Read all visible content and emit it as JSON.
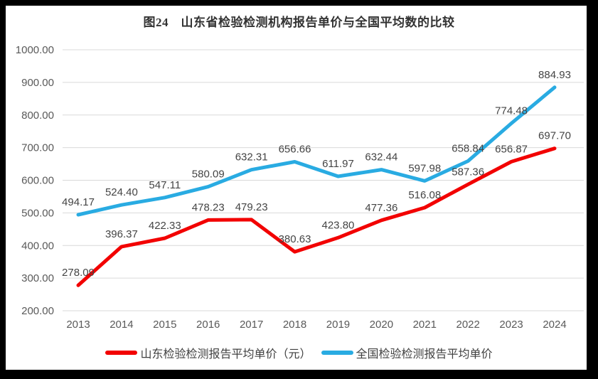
{
  "title": "图24　山东省检验检测机构报告单价与全国平均数的比较",
  "chart_data": {
    "type": "line",
    "categories": [
      "2013",
      "2014",
      "2015",
      "2016",
      "2017",
      "2018",
      "2019",
      "2020",
      "2021",
      "2022",
      "2023",
      "2024"
    ],
    "series": [
      {
        "id": "shandong",
        "name": "山东检验检测报告平均单价（元）",
        "color": "#f20000",
        "values": [
          278.09,
          396.37,
          422.33,
          478.23,
          479.23,
          380.63,
          423.8,
          477.36,
          516.08,
          587.36,
          656.87,
          697.7
        ]
      },
      {
        "id": "national",
        "name": "全国检验检测报告平均单价",
        "color": "#29abe2",
        "values": [
          494.17,
          524.4,
          547.11,
          580.09,
          632.31,
          656.66,
          611.97,
          632.44,
          597.98,
          658.84,
          774.48,
          884.93
        ]
      }
    ],
    "xlabel": "",
    "ylabel": "",
    "ylim": [
      200,
      1000
    ],
    "yticks": [
      "200.00",
      "300.00",
      "400.00",
      "500.00",
      "600.00",
      "700.00",
      "800.00",
      "900.00",
      "1000.00"
    ],
    "grid": true,
    "data_labels": true,
    "legend_position": "bottom"
  },
  "colors": {
    "frame_border": "#000000",
    "background": "#ffffff",
    "gridline": "#d9d9d9",
    "axis_text": "#595959",
    "data_label_text": "#444444",
    "title_text": "#333333",
    "legend_text": "#404040"
  }
}
